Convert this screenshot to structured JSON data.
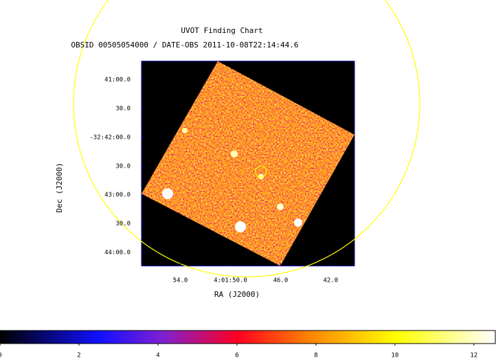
{
  "chart_data": {
    "type": "image",
    "title": "UVOT Finding Chart",
    "subtitle": "OBSID 00505054000 / DATE-OBS 2011-10-08T22:14:44.6",
    "xlabel": "RA (J2000)",
    "ylabel": "Dec (J2000)",
    "xlim": [
      57.1,
      40.1
    ],
    "xticks": [
      {
        "value": 54,
        "label": "54.0"
      },
      {
        "value": 50,
        "label": "4:01:50.0"
      },
      {
        "value": 46,
        "label": "46.0"
      },
      {
        "value": 42,
        "label": "42.0"
      }
    ],
    "ylim": [
      44.23,
      40.68
    ],
    "yticks": [
      {
        "value": 41,
        "label": "41:00.0"
      },
      {
        "value": 41.5,
        "label": "30.0"
      },
      {
        "value": 42,
        "label": "-32:42:00.0"
      },
      {
        "value": 42.5,
        "label": "30.0"
      },
      {
        "value": 43,
        "label": "43:00.0"
      },
      {
        "value": 43.5,
        "label": "30.0"
      },
      {
        "value": 44,
        "label": "44:00.0"
      }
    ],
    "colorbar": {
      "lim": [
        0,
        12.56
      ],
      "ticks": [
        0,
        2,
        4,
        6,
        8,
        10,
        12
      ]
    }
  }
}
